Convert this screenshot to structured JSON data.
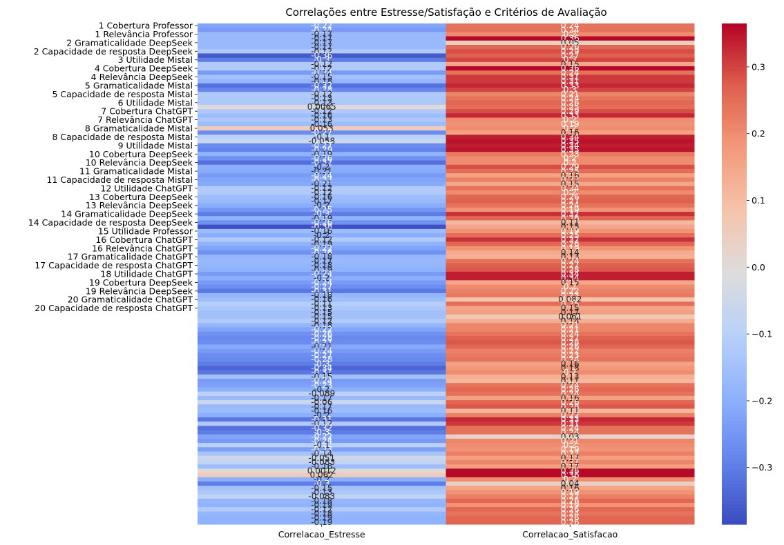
{
  "chart_data": {
    "type": "heatmap",
    "title": "Correlações entre Estresse/Satisfação e Critérios de Avaliação",
    "xlabel": "",
    "ylabel": "",
    "columns": [
      "Correlacao_Estresse",
      "Correlacao_Satisfacao"
    ],
    "row_tick_labels": [
      "1 Cobertura Professor",
      "1 Relevância Professor",
      "2 Gramaticalidade DeepSeek ",
      "2 Capacidade de resposta DeepSeek ",
      "3 Utilidade Mistal",
      "4 Cobertura DeepSeek ",
      "4 Relevância DeepSeek ",
      "5 Gramaticalidade Mistal",
      "5 Capacidade de resposta Mistal",
      "6 Utilidade Mistal",
      "7 Cobertura ChatGPT",
      "7 Relevância ChatGPT",
      "8 Gramaticalidade Mistal",
      "8 Capacidade de resposta Mistal",
      "9 Utilidade Mistal",
      "10 Cobertura DeepSeek ",
      "10 Relevância DeepSeek ",
      "11 Gramaticalidade Mistal",
      "11 Capacidade de resposta Mistal",
      "12 Utilidade ChatGPT",
      "13 Cobertura DeepSeek ",
      "13 Relevância DeepSeek ",
      "14 Gramaticalidade DeepSeek ",
      "14 Capacidade de resposta DeepSeek ",
      "15 Utilidade Professor",
      "16 Cobertura ChatGPT",
      "16 Relevância ChatGPT",
      "17 Gramaticalidade ChatGPT",
      "17 Capacidade de resposta ChatGPT",
      "18 Utilidade ChatGPT",
      "19 Cobertura DeepSeek ",
      "19 Relevância DeepSeek ",
      "20 Gramaticalidade ChatGPT",
      "20 Capacidade de resposta ChatGPT"
    ],
    "tick_every": 2,
    "series": [
      {
        "name": "Correlacao_Estresse",
        "values": [
          -0.22,
          -0.24,
          -0.17,
          -0.17,
          -0.17,
          -0.17,
          -0.12,
          -0.36,
          -0.3,
          -0.12,
          -0.12,
          -0.24,
          -0.15,
          -0.18,
          -0.32,
          -0.28,
          -0.12,
          -0.13,
          -0.13,
          0.0065,
          -0.12,
          -0.16,
          -0.13,
          -0.16,
          0.053,
          -0.27,
          -0.1,
          -0.058,
          -0.27,
          -0.29,
          -0.19,
          -0.26,
          -0.32,
          -0.2,
          -0.21,
          -0.24,
          -0.22,
          -0.21,
          -0.12,
          -0.12,
          -0.16,
          -0.17,
          -0.2,
          -0.25,
          -0.3,
          -0.19,
          -0.26,
          -0.38,
          -0.16,
          -0.2,
          -0.12,
          -0.19,
          -0.22,
          -0.26,
          -0.18,
          -0.17,
          -0.18,
          -0.19,
          -0.24,
          -0.2,
          -0.24,
          -0.27,
          -0.31,
          -0.18,
          -0.16,
          -0.11,
          -0.13,
          -0.15,
          -0.15,
          -0.12,
          -0.18,
          -0.22,
          -0.26,
          -0.28,
          -0.27,
          -0.21,
          -0.24,
          -0.27,
          -0.28,
          -0.3,
          -0.34,
          -0.31,
          -0.15,
          -0.24,
          -0.23,
          -0.2,
          -0.089,
          -0.17,
          -0.06,
          -0.17,
          -0.16,
          -0.2,
          -0.31,
          -0.12,
          -0.32,
          -0.3,
          -0.22,
          -0.24,
          -0.1,
          -0.23,
          -0.14,
          -0.051,
          -0.083,
          -0.16,
          0.0012,
          0.062,
          -0.2,
          -0.3,
          -0.15,
          -0.13,
          -0.083,
          -0.18,
          -0.19,
          -0.12,
          -0.18,
          -0.19,
          -0.19
        ]
      },
      {
        "name": "Correlacao_Satisfacao",
        "values": [
          0.24,
          0.24,
          0.2,
          0.36,
          0.05,
          0.26,
          0.29,
          0.27,
          0.3,
          0.15,
          0.36,
          0.24,
          0.31,
          0.31,
          0.33,
          0.3,
          0.21,
          0.24,
          0.26,
          0.25,
          0.29,
          0.33,
          0.2,
          0.19,
          0.2,
          0.16,
          0.34,
          0.35,
          0.34,
          0.35,
          0.23,
          0.2,
          0.2,
          0.29,
          0.25,
          0.16,
          0.22,
          0.15,
          0.24,
          0.2,
          0.26,
          0.27,
          0.24,
          0.19,
          0.32,
          0.26,
          0.11,
          0.15,
          0.19,
          0.25,
          0.32,
          0.26,
          0.19,
          0.14,
          0.13,
          0.24,
          0.27,
          0.28,
          0.34,
          0.34,
          0.15,
          0.2,
          0.22,
          0.23,
          0.082,
          0.25,
          0.15,
          0.17,
          0.061,
          0.14,
          0.21,
          0.21,
          0.24,
          0.27,
          0.28,
          0.26,
          0.22,
          0.23,
          0.24,
          0.16,
          0.18,
          0.2,
          0.13,
          0.11,
          0.24,
          0.26,
          0.24,
          0.16,
          0.26,
          0.28,
          0.11,
          0.22,
          0.33,
          0.31,
          0.24,
          0.24,
          0.03,
          0.21,
          0.2,
          0.19,
          0.22,
          0.17,
          0.21,
          0.17,
          0.36,
          0.36,
          0.2,
          0.04,
          0.16,
          0.19,
          0.22,
          0.26,
          0.19,
          0.26,
          0.24,
          0.26,
          0.26
        ]
      }
    ],
    "colormap": "coolwarm",
    "colorbar": {
      "min": -0.385,
      "max": 0.365,
      "ticks": [
        0.3,
        0.2,
        0.1,
        0.0,
        -0.1,
        -0.2,
        -0.3
      ],
      "tick_labels": [
        "0.3",
        "0.2",
        "0.1",
        "0.0",
        "−0.1",
        "−0.2",
        "−0.3"
      ]
    },
    "annotations": true,
    "grid": false
  }
}
